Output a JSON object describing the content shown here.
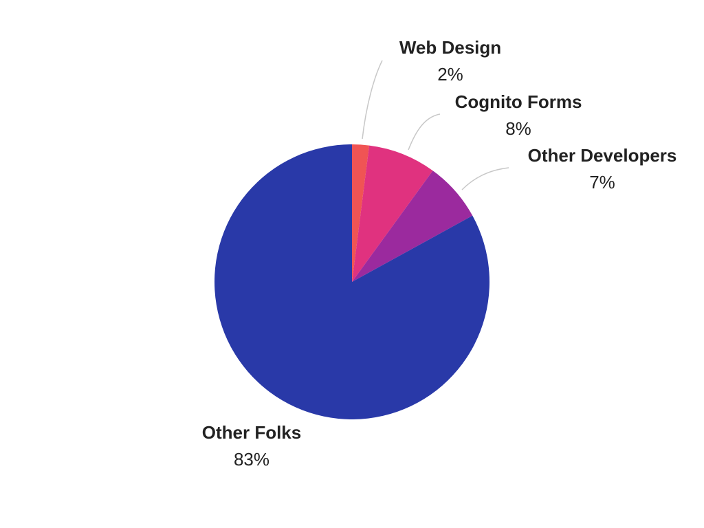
{
  "chart_data": {
    "type": "pie",
    "title": "",
    "slices": [
      {
        "label": "Web Design",
        "value": 2,
        "value_label": "2%",
        "color": "#f05454"
      },
      {
        "label": "Cognito Forms",
        "value": 8,
        "value_label": "8%",
        "color": "#e0327f"
      },
      {
        "label": "Other Developers",
        "value": 7,
        "value_label": "7%",
        "color": "#9b2a9e"
      },
      {
        "label": "Other Folks",
        "value": 83,
        "value_label": "83%",
        "color": "#2939a8"
      }
    ],
    "start_angle": "12 o'clock",
    "direction": "clockwise",
    "legend": "none"
  }
}
